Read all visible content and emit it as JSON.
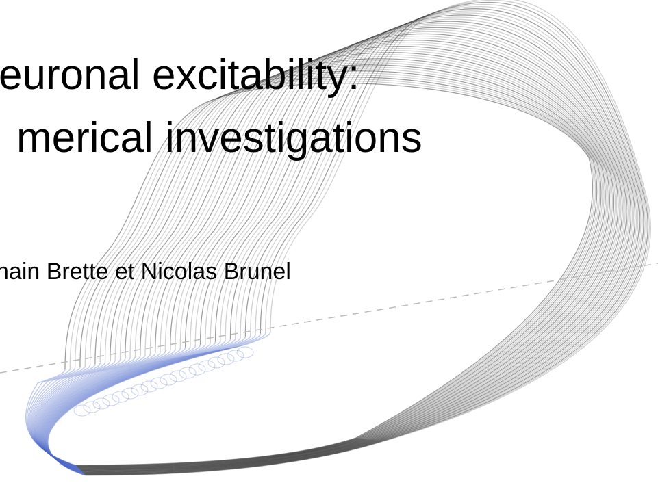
{
  "title": {
    "line1": "euronal excitability:",
    "line2": "merical investigations"
  },
  "authors": "hain Brette et Nicolas Brunel"
}
